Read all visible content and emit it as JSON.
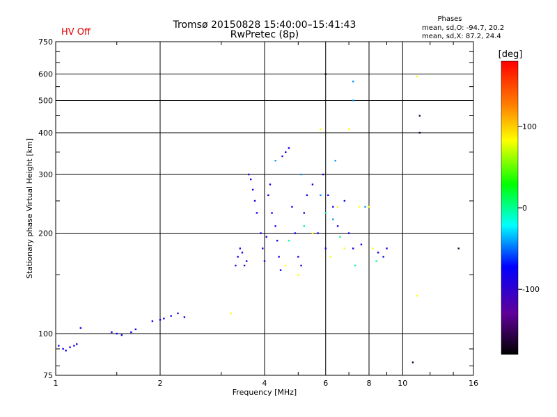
{
  "header": {
    "title_line1": "Tromsø 20150828 15:40:00–15:41:43",
    "title_line2": "RwPretec (8p)",
    "hv_status": "HV Off",
    "phase_title": "Phases",
    "phase_line1": "mean, sd,O: -94.7, 20.2",
    "phase_line2": "mean, sd,X:  87.2, 24.4"
  },
  "colors": {
    "hv_status": "#e00000",
    "frame": "#000000"
  },
  "chart_data": {
    "type": "scatter",
    "xlabel": "Frequency [MHz]",
    "ylabel": "Stationary phase Virtual Height [km]",
    "xscale": "log",
    "yscale": "log",
    "xlim": [
      1,
      16
    ],
    "ylim": [
      75,
      750
    ],
    "xticks": [
      1,
      2,
      4,
      6,
      8,
      10,
      16
    ],
    "yticks": [
      75,
      100,
      200,
      300,
      400,
      500,
      600,
      750
    ],
    "grid": true,
    "colorbar": {
      "label": "[deg]",
      "range": [
        -180,
        180
      ],
      "ticks": [
        100,
        0,
        -100
      ]
    },
    "series": [
      {
        "color_phase": -110,
        "points": [
          [
            1.02,
            92
          ],
          [
            1.05,
            90
          ],
          [
            1.07,
            89
          ],
          [
            1.1,
            91
          ],
          [
            1.13,
            92
          ],
          [
            1.15,
            93
          ],
          [
            1.18,
            104
          ],
          [
            1.45,
            101
          ],
          [
            1.5,
            100
          ],
          [
            1.55,
            99
          ],
          [
            1.65,
            101
          ],
          [
            1.7,
            103
          ],
          [
            1.9,
            109
          ],
          [
            2.0,
            110
          ],
          [
            2.05,
            111
          ],
          [
            2.15,
            113
          ],
          [
            2.25,
            115
          ],
          [
            2.35,
            112
          ],
          [
            3.3,
            160
          ],
          [
            3.35,
            170
          ],
          [
            3.4,
            180
          ],
          [
            3.45,
            175
          ],
          [
            3.5,
            160
          ],
          [
            3.55,
            165
          ],
          [
            3.6,
            300
          ],
          [
            3.65,
            290
          ],
          [
            3.7,
            270
          ],
          [
            3.75,
            250
          ],
          [
            3.8,
            230
          ],
          [
            3.9,
            200
          ],
          [
            3.95,
            180
          ],
          [
            4.0,
            165
          ],
          [
            4.05,
            195
          ],
          [
            4.1,
            260
          ],
          [
            4.15,
            280
          ],
          [
            4.2,
            230
          ],
          [
            4.3,
            210
          ],
          [
            4.35,
            190
          ],
          [
            4.4,
            170
          ],
          [
            4.45,
            155
          ],
          [
            4.5,
            340
          ],
          [
            4.6,
            350
          ],
          [
            4.7,
            360
          ],
          [
            4.8,
            240
          ],
          [
            4.9,
            200
          ],
          [
            5.0,
            170
          ],
          [
            5.1,
            160
          ],
          [
            5.2,
            230
          ],
          [
            5.3,
            260
          ],
          [
            5.5,
            280
          ],
          [
            5.7,
            200
          ],
          [
            5.9,
            300
          ],
          [
            6.0,
            180
          ],
          [
            6.1,
            260
          ],
          [
            6.3,
            240
          ],
          [
            6.5,
            210
          ],
          [
            6.8,
            250
          ],
          [
            7.0,
            200
          ],
          [
            7.2,
            180
          ],
          [
            7.6,
            185
          ],
          [
            8.5,
            175
          ],
          [
            9.0,
            180
          ],
          [
            8.8,
            170
          ]
        ]
      },
      {
        "color_phase": 100,
        "points": [
          [
            3.2,
            115
          ],
          [
            4.6,
            160
          ],
          [
            5.0,
            150
          ],
          [
            5.5,
            200
          ],
          [
            5.8,
            410
          ],
          [
            6.2,
            170
          ],
          [
            6.5,
            240
          ],
          [
            6.8,
            180
          ],
          [
            7.0,
            410
          ],
          [
            7.5,
            240
          ],
          [
            8.0,
            240
          ],
          [
            8.2,
            180
          ],
          [
            11.0,
            130
          ],
          [
            11.0,
            590
          ]
        ]
      },
      {
        "color_phase": 20,
        "points": [
          [
            4.7,
            190
          ],
          [
            5.2,
            210
          ],
          [
            6.0,
            230
          ],
          [
            6.6,
            195
          ],
          [
            7.3,
            160
          ],
          [
            8.4,
            165
          ]
        ]
      },
      {
        "color_phase": -40,
        "points": [
          [
            4.3,
            330
          ],
          [
            5.1,
            300
          ],
          [
            5.8,
            260
          ],
          [
            6.4,
            330
          ],
          [
            7.2,
            570
          ],
          [
            7.2,
            500
          ],
          [
            6.3,
            220
          ],
          [
            7.8,
            240
          ]
        ]
      },
      {
        "color_phase": -170,
        "points": [
          [
            6.0,
            600
          ],
          [
            10.7,
            82
          ],
          [
            11.2,
            450
          ],
          [
            11.2,
            400
          ],
          [
            14.5,
            180
          ]
        ]
      }
    ]
  }
}
